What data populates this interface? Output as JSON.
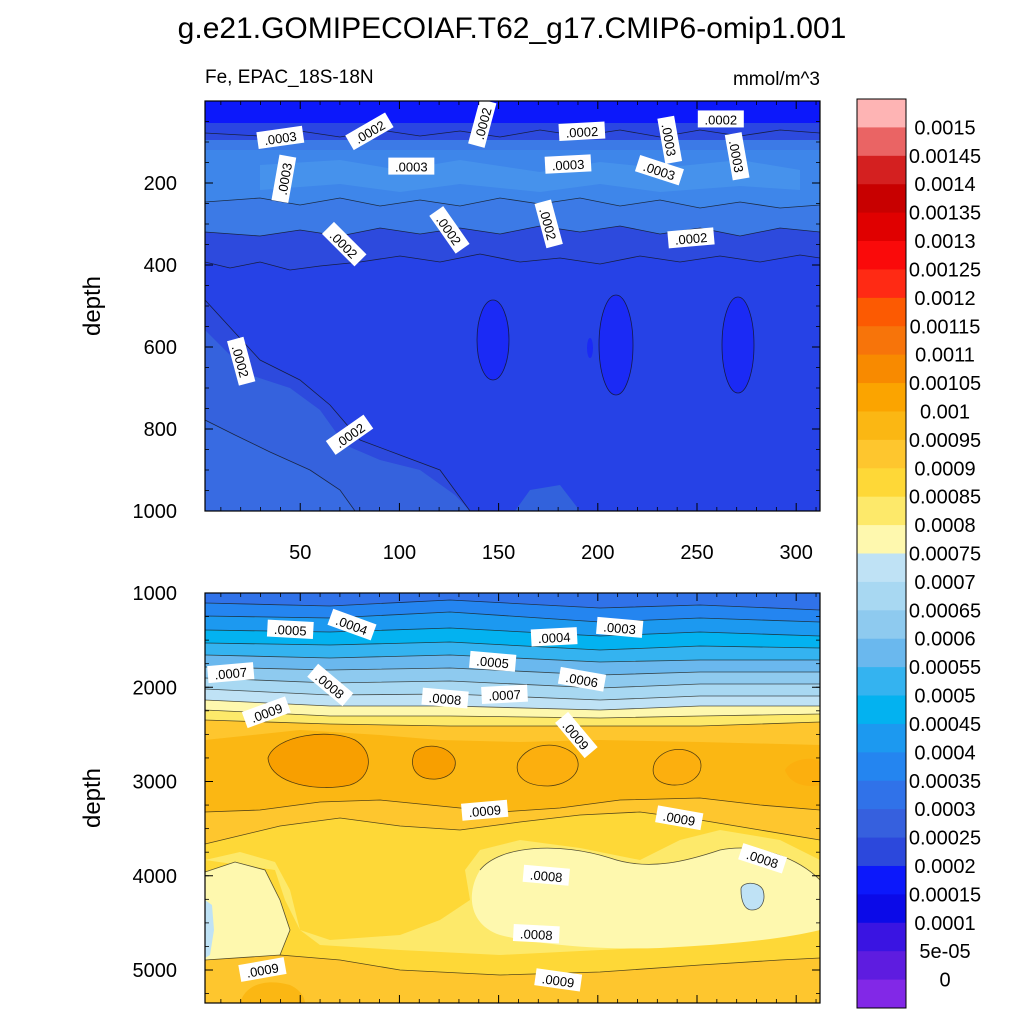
{
  "chart_data": {
    "type": "contour",
    "title": "g.e21.GOMIPECOIAF.T62_g17.CMIP6-omip1.001",
    "variable_label": "Fe, EPAC_18S-18N",
    "units_label": "mmol/m^3",
    "ylabel": "depth",
    "xlim": [
      2,
      312
    ],
    "xticks": [
      50,
      100,
      150,
      200,
      250,
      300
    ],
    "xtick_labels": [
      "50",
      "100",
      "150",
      "200",
      "250",
      "300"
    ],
    "panels": [
      {
        "name": "upper",
        "ylim": [
          0,
          1000
        ],
        "yticks": [
          200,
          400,
          600,
          800,
          1000
        ],
        "ytick_labels": [
          "200",
          "400",
          "600",
          "800",
          "1000"
        ],
        "contour_labels": [
          {
            "text": ".0003",
            "x": 40,
            "y": 90,
            "angle": -8
          },
          {
            "text": ".0002",
            "x": 85,
            "y": 75,
            "angle": -30
          },
          {
            "text": ".0002",
            "x": 142,
            "y": 55,
            "angle": -75
          },
          {
            "text": ".0002",
            "x": 192,
            "y": 75,
            "angle": -3
          },
          {
            "text": ".0003",
            "x": 236,
            "y": 95,
            "angle": 80
          },
          {
            "text": ".0002",
            "x": 262,
            "y": 45,
            "angle": 0
          },
          {
            "text": ".0003",
            "x": 270,
            "y": 135,
            "angle": 80
          },
          {
            "text": ".0003",
            "x": 42,
            "y": 190,
            "angle": -80
          },
          {
            "text": ".0003",
            "x": 106,
            "y": 160,
            "angle": 0
          },
          {
            "text": ".0003",
            "x": 185,
            "y": 155,
            "angle": -3
          },
          {
            "text": ".0003",
            "x": 231,
            "y": 170,
            "angle": 18
          },
          {
            "text": ".0002",
            "x": 72,
            "y": 350,
            "angle": 45
          },
          {
            "text": ".0002",
            "x": 125,
            "y": 315,
            "angle": 55
          },
          {
            "text": ".0002",
            "x": 175,
            "y": 300,
            "angle": 75
          },
          {
            "text": ".0002",
            "x": 247,
            "y": 335,
            "angle": -5
          },
          {
            "text": ".0002",
            "x": 20,
            "y": 635,
            "angle": 75
          },
          {
            "text": ".0002",
            "x": 75,
            "y": 815,
            "angle": -35
          }
        ]
      },
      {
        "name": "lower",
        "ylim": [
          1000,
          5350
        ],
        "yticks": [
          1000,
          2000,
          3000,
          4000,
          5000
        ],
        "ytick_labels": [
          "1000",
          "2000",
          "3000",
          "4000",
          "5000"
        ],
        "contour_labels": [
          {
            "text": ".0005",
            "x": 45,
            "y": 1390,
            "angle": 3
          },
          {
            "text": ".0004",
            "x": 76,
            "y": 1340,
            "angle": 20
          },
          {
            "text": ".0004",
            "x": 178,
            "y": 1470,
            "angle": -3
          },
          {
            "text": ".0003",
            "x": 211,
            "y": 1370,
            "angle": 5
          },
          {
            "text": ".0007",
            "x": 15,
            "y": 1850,
            "angle": -5
          },
          {
            "text": ".0008",
            "x": 65,
            "y": 1980,
            "angle": 40
          },
          {
            "text": ".0005",
            "x": 147,
            "y": 1730,
            "angle": 5
          },
          {
            "text": ".0008",
            "x": 123,
            "y": 2120,
            "angle": 5
          },
          {
            "text": ".0007",
            "x": 153,
            "y": 2080,
            "angle": -3
          },
          {
            "text": ".0006",
            "x": 192,
            "y": 1920,
            "angle": 10
          },
          {
            "text": ".0009",
            "x": 33,
            "y": 2270,
            "angle": -20
          },
          {
            "text": ".0009",
            "x": 189,
            "y": 2510,
            "angle": 50
          },
          {
            "text": ".0009",
            "x": 143,
            "y": 3310,
            "angle": -5
          },
          {
            "text": ".0009",
            "x": 241,
            "y": 3390,
            "angle": 10
          },
          {
            "text": ".0008",
            "x": 174,
            "y": 4000,
            "angle": 5
          },
          {
            "text": ".0008",
            "x": 283,
            "y": 3820,
            "angle": 18
          },
          {
            "text": ".0008",
            "x": 169,
            "y": 4620,
            "angle": 3
          },
          {
            "text": ".0009",
            "x": 31,
            "y": 5000,
            "angle": -10
          },
          {
            "text": ".0009",
            "x": 180,
            "y": 5110,
            "angle": 8
          }
        ]
      }
    ],
    "colorbar": {
      "levels": [
        "0.0015",
        "0.00145",
        "0.0014",
        "0.00135",
        "0.0013",
        "0.00125",
        "0.0012",
        "0.00115",
        "0.0011",
        "0.00105",
        "0.001",
        "0.00095",
        "0.0009",
        "0.00085",
        "0.0008",
        "0.00075",
        "0.0007",
        "0.00065",
        "0.0006",
        "0.00055",
        "0.0005",
        "0.00045",
        "0.0004",
        "0.00035",
        "0.0003",
        "0.00025",
        "0.0002",
        "0.00015",
        "0.0001",
        "5e-05",
        "0"
      ],
      "colors": [
        "#feb4b4",
        "#ea6464",
        "#d42020",
        "#c80000",
        "#e00000",
        "#fa0a0a",
        "#ff2a14",
        "#fc5a02",
        "#f7740a",
        "#f88a00",
        "#fba400",
        "#fbb713",
        "#fec62e",
        "#fed837",
        "#fde96a",
        "#fef8ae",
        "#bfe2f5",
        "#a8d8f2",
        "#8ecaef",
        "#6ab8ee",
        "#34b3f0",
        "#03b2f0",
        "#1c99f0",
        "#2485f0",
        "#3072e9",
        "#3660de",
        "#2c48dc",
        "#0c18fb",
        "#0b0ae8",
        "#3a14e2",
        "#5e1ce0",
        "#8228e7"
      ]
    }
  }
}
